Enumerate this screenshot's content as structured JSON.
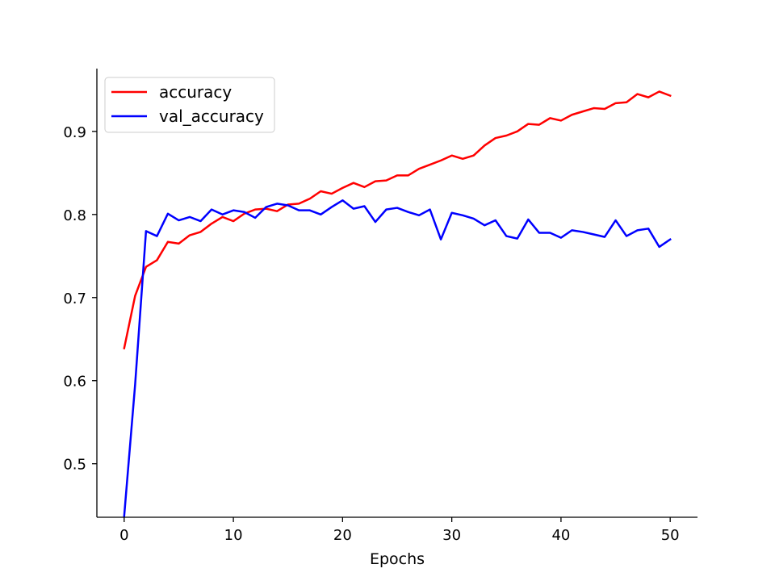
{
  "chart_data": {
    "type": "line",
    "title": "",
    "xlabel": "Epochs",
    "ylabel": "",
    "xlim": [
      -2.5,
      52.5
    ],
    "ylim": [
      0.4356,
      0.9756
    ],
    "x_ticks": [
      0,
      10,
      20,
      30,
      40,
      50
    ],
    "y_ticks": [
      0.5,
      0.6,
      0.7,
      0.8,
      0.9
    ],
    "grid": false,
    "legend_position": "top-left",
    "x": [
      0,
      1,
      2,
      3,
      4,
      5,
      6,
      7,
      8,
      9,
      10,
      11,
      12,
      13,
      14,
      15,
      16,
      17,
      18,
      19,
      20,
      21,
      22,
      23,
      24,
      25,
      26,
      27,
      28,
      29,
      30,
      31,
      32,
      33,
      34,
      35,
      36,
      37,
      38,
      39,
      40,
      41,
      42,
      43,
      44,
      45,
      46,
      47,
      48,
      49,
      50
    ],
    "series": [
      {
        "name": "accuracy",
        "color": "#ff0000",
        "values": [
          0.639,
          0.702,
          0.737,
          0.745,
          0.767,
          0.765,
          0.775,
          0.779,
          0.789,
          0.797,
          0.792,
          0.801,
          0.806,
          0.807,
          0.804,
          0.812,
          0.813,
          0.819,
          0.828,
          0.825,
          0.832,
          0.838,
          0.833,
          0.84,
          0.841,
          0.847,
          0.847,
          0.855,
          0.86,
          0.865,
          0.871,
          0.867,
          0.871,
          0.883,
          0.892,
          0.895,
          0.9,
          0.909,
          0.908,
          0.916,
          0.913,
          0.92,
          0.924,
          0.928,
          0.927,
          0.934,
          0.935,
          0.945,
          0.941,
          0.948,
          0.943
        ]
      },
      {
        "name": "val_accuracy",
        "color": "#0000ff",
        "values": [
          0.437,
          0.595,
          0.78,
          0.774,
          0.801,
          0.793,
          0.797,
          0.792,
          0.806,
          0.8,
          0.805,
          0.803,
          0.796,
          0.809,
          0.813,
          0.811,
          0.805,
          0.805,
          0.8,
          0.809,
          0.817,
          0.807,
          0.81,
          0.791,
          0.806,
          0.808,
          0.803,
          0.799,
          0.806,
          0.77,
          0.802,
          0.799,
          0.795,
          0.787,
          0.793,
          0.774,
          0.771,
          0.794,
          0.778,
          0.778,
          0.772,
          0.781,
          0.779,
          0.776,
          0.773,
          0.793,
          0.774,
          0.781,
          0.783,
          0.761,
          0.77
        ]
      }
    ]
  }
}
